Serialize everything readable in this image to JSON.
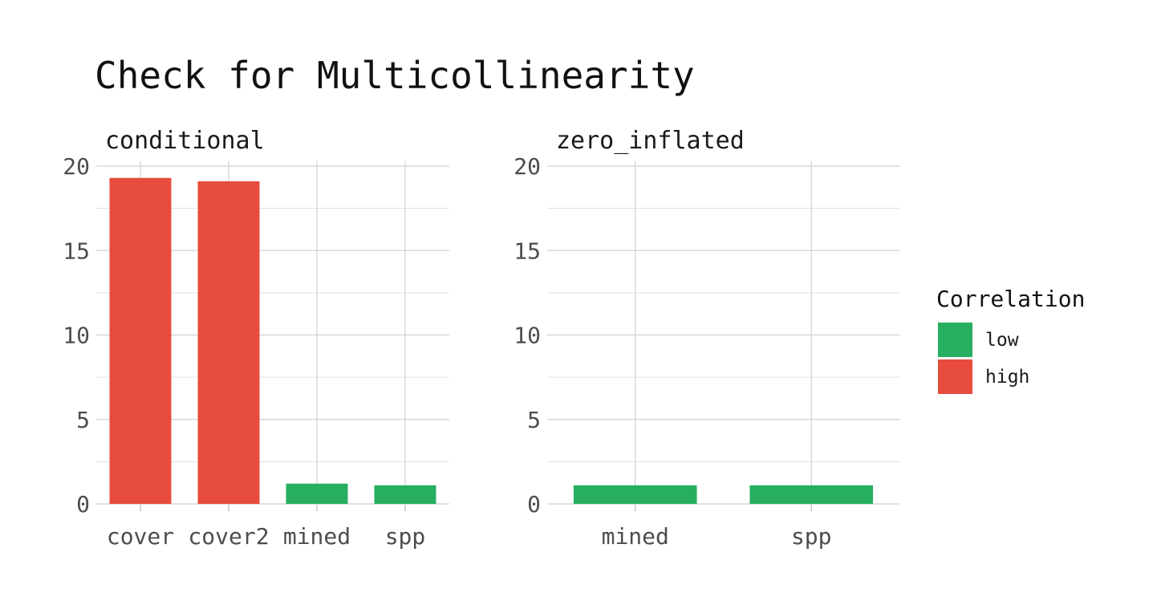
{
  "chart_data": {
    "type": "bar",
    "title": "Check for Multicollinearity",
    "xlabel": "",
    "ylabel": "",
    "colors": {
      "low": "#27AE60",
      "high": "#E74C3C"
    },
    "legend": {
      "title": "Correlation",
      "placement": "right",
      "entries": [
        {
          "key": "low",
          "label": "low",
          "color": "#27AE60"
        },
        {
          "key": "high",
          "label": "high",
          "color": "#E74C3C"
        }
      ]
    },
    "ylim": [
      0,
      20
    ],
    "yticks": [
      "0",
      "5",
      "10",
      "15",
      "20"
    ],
    "grid": true,
    "facets": [
      {
        "name": "conditional",
        "categories": [
          "cover",
          "cover2",
          "mined",
          "spp"
        ],
        "values": [
          19.3,
          19.1,
          1.2,
          1.1
        ],
        "correlation": [
          "high",
          "high",
          "low",
          "low"
        ]
      },
      {
        "name": "zero_inflated",
        "categories": [
          "mined",
          "spp"
        ],
        "values": [
          1.1,
          1.1
        ],
        "correlation": [
          "low",
          "low"
        ]
      }
    ]
  }
}
